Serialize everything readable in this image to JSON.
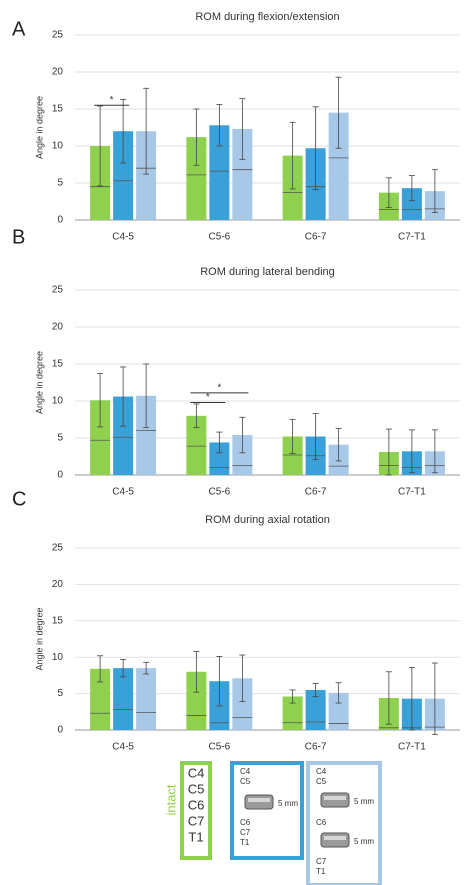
{
  "chart_data": [
    {
      "type": "bar",
      "panel": "A",
      "title": "ROM during flexion/extension",
      "ylabel": "Angle in degree",
      "categories": [
        "C4-5",
        "C5-6",
        "C6-7",
        "C7-T1"
      ],
      "ylim": [
        0,
        25
      ],
      "yticks": [
        0,
        5,
        10,
        15,
        20,
        25
      ],
      "grid": true,
      "series": [
        {
          "name": "intact",
          "color": "#8fd14f",
          "values": [
            10,
            11.2,
            8.7,
            3.7
          ],
          "errors": [
            5.4,
            3.8,
            4.5,
            2.0
          ],
          "inner": [
            4.5,
            6.1,
            3.7,
            1.4
          ]
        },
        {
          "color": "#3aa0d8",
          "values": [
            12,
            12.8,
            9.7,
            4.3
          ],
          "errors": [
            4.3,
            2.8,
            5.6,
            1.7
          ],
          "inner": [
            5.3,
            6.6,
            4.5,
            1.4
          ]
        },
        {
          "color": "#a8c8e8",
          "values": [
            12,
            12.3,
            14.5,
            3.9
          ],
          "errors": [
            5.8,
            4.1,
            4.8,
            2.9
          ],
          "inner": [
            7.0,
            6.8,
            8.4,
            1.5
          ]
        }
      ],
      "annotations": [
        "*"
      ]
    },
    {
      "type": "bar",
      "panel": "B",
      "title": "ROM during lateral bending",
      "ylabel": "Angle in degree",
      "categories": [
        "C4-5",
        "C5-6",
        "C6-7",
        "C7-T1"
      ],
      "ylim": [
        0,
        25
      ],
      "yticks": [
        0,
        5,
        10,
        15,
        20,
        25
      ],
      "grid": true,
      "series": [
        {
          "name": "intact",
          "color": "#8fd14f",
          "values": [
            10.1,
            8.0,
            5.2,
            3.1
          ],
          "errors": [
            3.6,
            1.6,
            2.3,
            3.1
          ],
          "inner": [
            4.7,
            3.9,
            2.7,
            1.3
          ]
        },
        {
          "color": "#3aa0d8",
          "values": [
            10.6,
            4.4,
            5.2,
            3.2
          ],
          "errors": [
            4.0,
            1.4,
            3.1,
            2.9
          ],
          "inner": [
            5.1,
            1.0,
            2.6,
            1.0
          ]
        },
        {
          "color": "#a8c8e8",
          "values": [
            10.7,
            5.4,
            4.1,
            3.2
          ],
          "errors": [
            4.3,
            2.4,
            2.2,
            2.9
          ],
          "inner": [
            6.0,
            1.3,
            1.2,
            1.3
          ]
        }
      ],
      "annotations": [
        "*",
        "*"
      ]
    },
    {
      "type": "bar",
      "panel": "C",
      "title": "ROM during axial rotation",
      "ylabel": "Angle in degree",
      "categories": [
        "C4-5",
        "C5-6",
        "C6-7",
        "C7-T1"
      ],
      "ylim": [
        0,
        25
      ],
      "yticks": [
        0,
        5,
        10,
        15,
        20,
        25
      ],
      "grid": true,
      "series": [
        {
          "name": "intact",
          "color": "#8fd14f",
          "values": [
            8.4,
            8.0,
            4.6,
            4.4
          ],
          "errors": [
            1.8,
            2.8,
            0.9,
            3.6
          ],
          "inner": [
            2.3,
            2.0,
            1.0,
            0.3
          ]
        },
        {
          "color": "#3aa0d8",
          "values": [
            8.5,
            6.7,
            5.5,
            4.3
          ],
          "errors": [
            1.2,
            3.4,
            0.9,
            4.3
          ],
          "inner": [
            2.8,
            1.0,
            1.1,
            0.3
          ]
        },
        {
          "color": "#a8c8e8",
          "values": [
            8.5,
            7.1,
            5.1,
            4.3
          ],
          "errors": [
            0.8,
            3.2,
            1.4,
            4.9
          ],
          "inner": [
            2.4,
            1.7,
            0.9,
            0.4
          ]
        }
      ],
      "annotations": []
    }
  ],
  "legend": [
    {
      "color": "#8fd14f",
      "texts": [
        "C4",
        "C5",
        "C6",
        "C7",
        "T1"
      ]
    },
    {
      "color": "#3aa0d8",
      "texts": [
        "C4",
        "C5",
        "5 mm",
        "C6",
        "C7",
        "T1"
      ]
    },
    {
      "color": "#a8c8e8",
      "texts": [
        "C4",
        "C5",
        "5 mm",
        "C6",
        "5 mm",
        "C7",
        "T1"
      ]
    }
  ]
}
